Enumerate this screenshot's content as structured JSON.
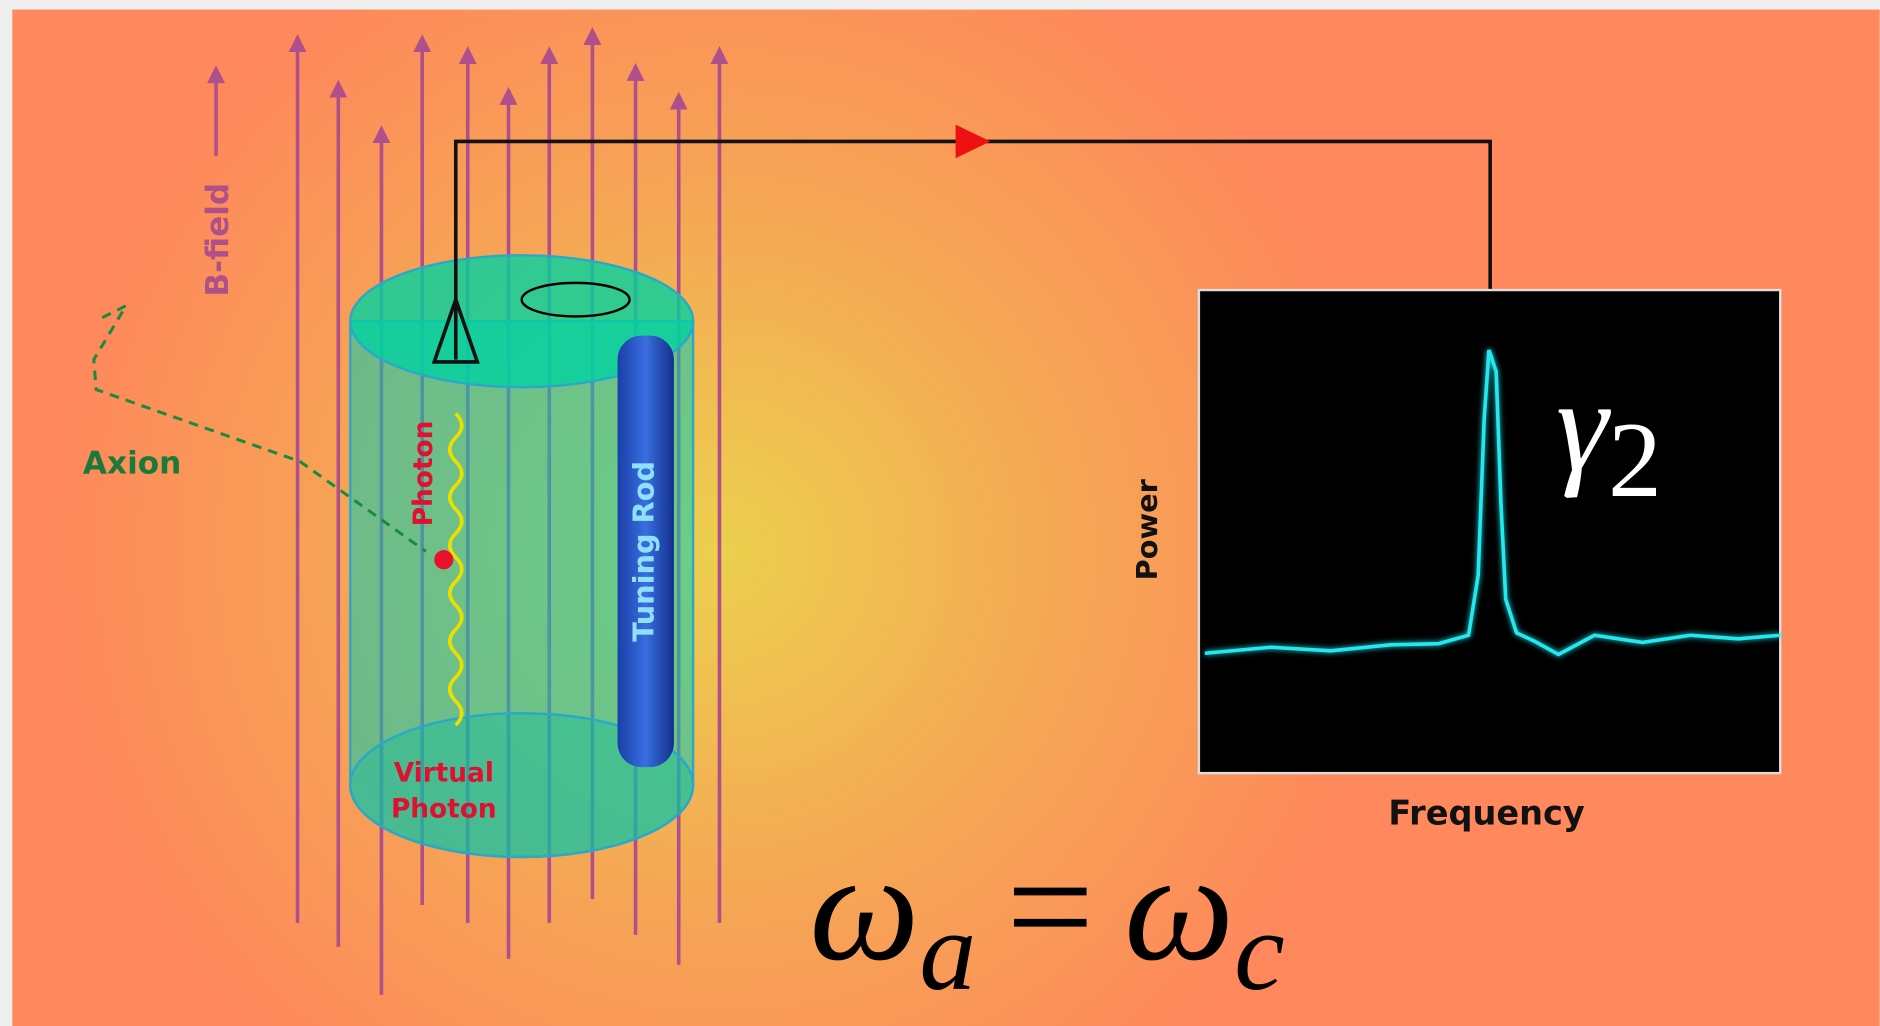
{
  "labels": {
    "b_field": "B-field",
    "axion": "Axion",
    "photon": "Photon",
    "tuning_rod": "Tuning Rod",
    "virtual_photon": [
      "Virtual",
      "Photon"
    ]
  },
  "spectrum": {
    "y_label": "Power",
    "x_label": "Frequency",
    "peak_label": {
      "symbol": "γ",
      "sub": "2"
    }
  },
  "equation": {
    "lhs": "ω",
    "lhs_sub": "a",
    "op": "=",
    "rhs": "ω",
    "rhs_sub": "c"
  }
}
